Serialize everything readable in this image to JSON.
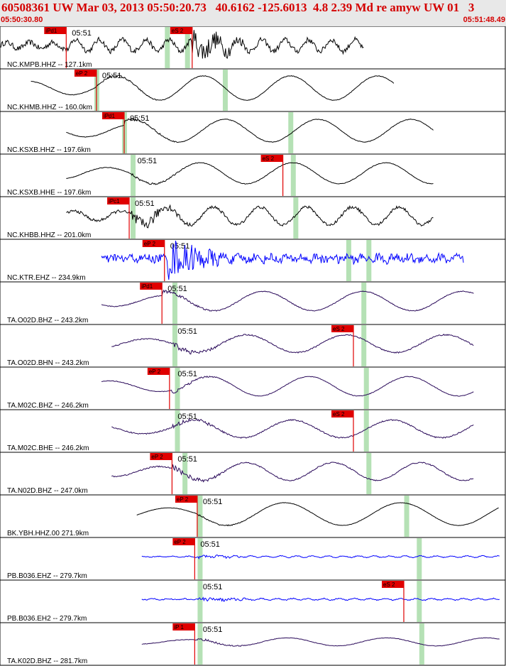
{
  "header": {
    "title": "60508361 UW Mar 03, 2013 05:50:20.73   40.6162 -125.6013  4.8 2.39 Md re amyw UW 01   3",
    "start_time": "05:50:30.80",
    "end_time": "05:51:48.49"
  },
  "colors": {
    "header_text": "#d40000",
    "pick_box": "#e00000",
    "window_shade": "#a8dca8",
    "trace_black": "#000000",
    "trace_blue": "#0000ff",
    "trace_purple": "#2a0a5a"
  },
  "chart_data": {
    "type": "line",
    "title": "60508361 UW Mar 03, 2013 05:50:20.73   40.6162 -125.6013  4.8 2.39 Md re amyw UW 01   3",
    "xlim": [
      "05:50:30.80",
      "05:51:48.49"
    ],
    "minute_mark": "05:51",
    "series": [
      {
        "name": "NC.KMPB.HHZ -- 127.1km",
        "color": "black",
        "start": 0.0,
        "end": 0.72,
        "amp": 0.35,
        "freq": 0.6,
        "noise": 0.55,
        "onset": 0.13,
        "burst": 0.38,
        "picks": [
          {
            "label": "iPd1",
            "x": 0.13
          },
          {
            "label": "eS 2",
            "x": 0.38
          }
        ],
        "windows": [
          0.33,
          0.37
        ]
      },
      {
        "name": "NC.KHMB.HHZ -- 160.0km",
        "color": "black",
        "start": 0.06,
        "end": 0.78,
        "amp": 0.75,
        "freq": 0.16,
        "noise": 0.06,
        "onset": 0.19,
        "burst": 0.2,
        "picks": [
          {
            "label": "eP 2",
            "x": 0.19
          }
        ],
        "windows": [
          0.19,
          0.445
        ]
      },
      {
        "name": "NC.KSXB.HHZ -- 197.6km",
        "color": "black",
        "start": 0.13,
        "end": 0.86,
        "amp": 0.7,
        "freq": 0.15,
        "noise": 0.06,
        "onset": 0.245,
        "burst": 0.25,
        "picks": [
          {
            "label": "iPd1",
            "x": 0.245
          }
        ],
        "windows": [
          0.245,
          0.575
        ]
      },
      {
        "name": "NC.KSXB.HHE -- 197.6km",
        "color": "black",
        "start": 0.13,
        "end": 0.86,
        "amp": 0.65,
        "freq": 0.15,
        "noise": 0.06,
        "onset": 0.26,
        "burst": 0.26,
        "picks": [
          {
            "label": "eS 2",
            "x": 0.56
          }
        ],
        "windows": [
          0.262,
          0.58
        ]
      },
      {
        "name": "NC.KHBB.HHZ -- 201.0km",
        "color": "black",
        "start": 0.13,
        "end": 0.86,
        "amp": 0.55,
        "freq": 0.3,
        "noise": 0.3,
        "onset": 0.255,
        "burst": 0.26,
        "picks": [
          {
            "label": "iPc1",
            "x": 0.255
          }
        ],
        "windows": [
          0.262,
          0.585
        ]
      },
      {
        "name": "NC.KTR.EHZ -- 234.9km",
        "color": "blue",
        "start": 0.2,
        "end": 0.92,
        "amp": 0.12,
        "freq": 0.9,
        "noise": 0.85,
        "onset": 0.325,
        "burst": 0.33,
        "picks": [
          {
            "label": "eP 2",
            "x": 0.325
          }
        ],
        "windows": [
          0.69,
          0.73
        ]
      },
      {
        "name": "TA.O02D.BHZ -- 243.2km",
        "color": "purple",
        "start": 0.2,
        "end": 0.94,
        "amp": 0.6,
        "freq": 0.14,
        "noise": 0.08,
        "onset": 0.32,
        "burst": 0.32,
        "picks": [
          {
            "label": "iPd1",
            "x": 0.32
          }
        ],
        "windows": [
          0.345,
          0.72
        ]
      },
      {
        "name": "TA.O02D.BHN -- 243.2km",
        "color": "purple",
        "start": 0.22,
        "end": 0.94,
        "amp": 0.55,
        "freq": 0.14,
        "noise": 0.12,
        "onset": 0.34,
        "burst": 0.34,
        "picks": [
          {
            "label": "eS 2",
            "x": 0.7
          }
        ],
        "windows": [
          0.345,
          0.72
        ]
      },
      {
        "name": "TA.M02C.BHZ -- 246.2km",
        "color": "purple",
        "start": 0.2,
        "end": 0.94,
        "amp": 0.6,
        "freq": 0.14,
        "noise": 0.06,
        "onset": 0.34,
        "burst": 0.34,
        "picks": [
          {
            "label": "eP 2",
            "x": 0.335
          }
        ],
        "windows": [
          0.35,
          0.725
        ]
      },
      {
        "name": "TA.M02C.BHE -- 246.2km",
        "color": "purple",
        "start": 0.22,
        "end": 0.94,
        "amp": 0.55,
        "freq": 0.14,
        "noise": 0.12,
        "onset": 0.34,
        "burst": 0.34,
        "picks": [
          {
            "label": "eS 2",
            "x": 0.7
          }
        ],
        "windows": [
          0.35,
          0.725
        ]
      },
      {
        "name": "TA.N02D.BHZ -- 247.0km",
        "color": "purple",
        "start": 0.22,
        "end": 0.94,
        "amp": 0.55,
        "freq": 0.16,
        "noise": 0.12,
        "onset": 0.34,
        "burst": 0.34,
        "picks": [
          {
            "label": "eP 2",
            "x": 0.34
          }
        ],
        "windows": [
          0.365,
          0.73
        ]
      },
      {
        "name": "BK.YBH.HHZ.00 271.9km",
        "color": "black",
        "start": 0.27,
        "end": 0.99,
        "amp": 0.7,
        "freq": 0.12,
        "noise": 0.04,
        "onset": 0.39,
        "burst": 0.39,
        "picks": [
          {
            "label": "eP 2",
            "x": 0.39
          }
        ],
        "windows": [
          0.395,
          0.805
        ]
      },
      {
        "name": "PB.B036.EHZ -- 279.7km",
        "color": "blue",
        "start": 0.28,
        "end": 0.99,
        "amp": 0.05,
        "freq": 0.9,
        "noise": 0.08,
        "onset": 0.385,
        "burst": 0.39,
        "picks": [
          {
            "label": "eP 2",
            "x": 0.385
          }
        ],
        "windows": [
          0.395,
          0.83
        ]
      },
      {
        "name": "PB.B036.EH2 -- 279.7km",
        "color": "blue",
        "start": 0.28,
        "end": 0.99,
        "amp": 0.05,
        "freq": 0.9,
        "noise": 0.1,
        "onset": 0.39,
        "burst": 0.39,
        "picks": [
          {
            "label": "eS 2",
            "x": 0.8
          }
        ],
        "windows": [
          0.395,
          0.83
        ]
      },
      {
        "name": "TA.K02D.BHZ -- 281.7km",
        "color": "purple",
        "start": 0.28,
        "end": 0.99,
        "amp": 0.25,
        "freq": 0.14,
        "noise": 0.05,
        "onset": 0.39,
        "burst": 0.395,
        "picks": [
          {
            "label": "iP 1",
            "x": 0.385
          }
        ],
        "windows": [
          0.395,
          0.835
        ]
      }
    ]
  }
}
